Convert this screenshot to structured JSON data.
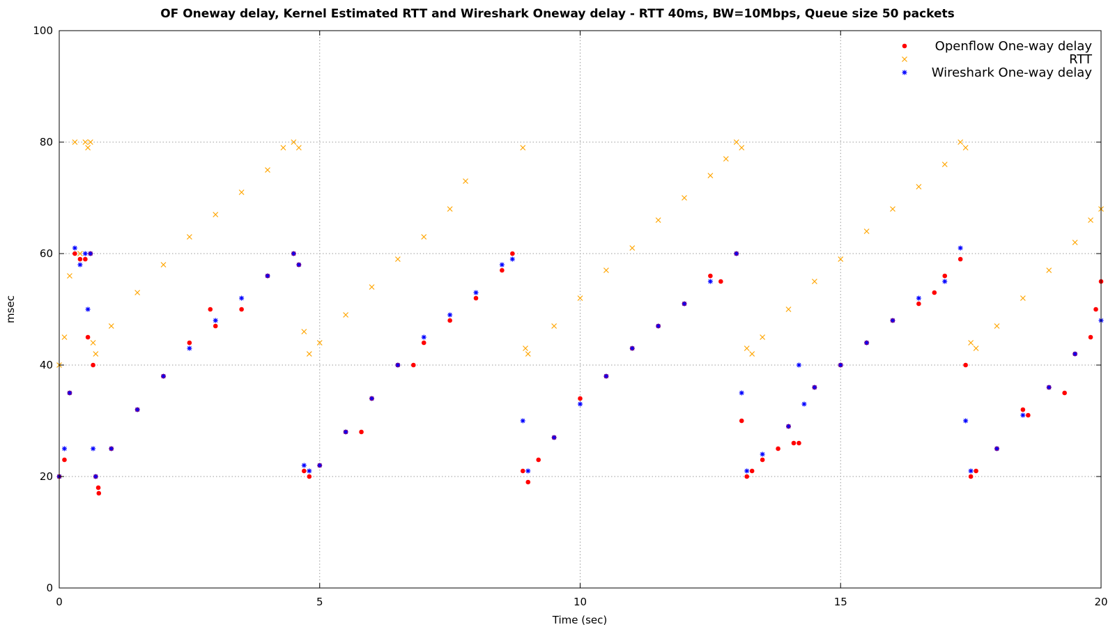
{
  "chart_data": {
    "type": "scatter",
    "title": "OF Oneway delay, Kernel Estimated RTT and Wireshark Oneway delay - RTT 40ms, BW=10Mbps, Queue size 50 packets",
    "xlabel": "Time (sec)",
    "ylabel": "msec",
    "xlim": [
      0,
      20
    ],
    "ylim": [
      0,
      100
    ],
    "x_ticks": [
      0,
      5,
      10,
      15,
      20
    ],
    "y_ticks": [
      0,
      20,
      40,
      60,
      80,
      100
    ],
    "x_tick_labels": [
      "0",
      "5",
      "10",
      "15",
      "20"
    ],
    "y_tick_labels": [
      "0",
      "20",
      "40",
      "60",
      "80",
      "100"
    ],
    "grid": true,
    "legend_position": "top-right",
    "series": [
      {
        "name": "Openflow One-way delay",
        "marker": "dot",
        "color": "#ff0000",
        "points": [
          [
            0.0,
            20
          ],
          [
            0.1,
            23
          ],
          [
            0.2,
            35
          ],
          [
            0.3,
            60
          ],
          [
            0.4,
            59
          ],
          [
            0.5,
            59
          ],
          [
            0.55,
            45
          ],
          [
            0.6,
            60
          ],
          [
            0.65,
            40
          ],
          [
            0.7,
            20
          ],
          [
            0.75,
            18
          ],
          [
            0.76,
            17
          ],
          [
            1.0,
            25
          ],
          [
            1.5,
            32
          ],
          [
            2.0,
            38
          ],
          [
            2.5,
            44
          ],
          [
            2.9,
            50
          ],
          [
            3.0,
            47
          ],
          [
            3.5,
            50
          ],
          [
            4.0,
            56
          ],
          [
            4.5,
            60
          ],
          [
            4.6,
            58
          ],
          [
            4.7,
            21
          ],
          [
            4.8,
            20
          ],
          [
            5.0,
            22
          ],
          [
            5.5,
            28
          ],
          [
            5.8,
            28
          ],
          [
            6.0,
            34
          ],
          [
            6.5,
            40
          ],
          [
            6.8,
            40
          ],
          [
            7.0,
            44
          ],
          [
            7.5,
            48
          ],
          [
            8.0,
            52
          ],
          [
            8.5,
            57
          ],
          [
            8.7,
            60
          ],
          [
            8.9,
            21
          ],
          [
            9.0,
            19
          ],
          [
            9.2,
            23
          ],
          [
            9.5,
            27
          ],
          [
            10.0,
            34
          ],
          [
            10.5,
            38
          ],
          [
            11.0,
            43
          ],
          [
            11.5,
            47
          ],
          [
            12.0,
            51
          ],
          [
            12.5,
            56
          ],
          [
            12.7,
            55
          ],
          [
            13.0,
            60
          ],
          [
            13.1,
            30
          ],
          [
            13.2,
            20
          ],
          [
            13.3,
            21
          ],
          [
            13.5,
            23
          ],
          [
            13.8,
            25
          ],
          [
            14.0,
            29
          ],
          [
            14.1,
            26
          ],
          [
            14.2,
            26
          ],
          [
            14.5,
            36
          ],
          [
            15.0,
            40
          ],
          [
            15.5,
            44
          ],
          [
            16.0,
            48
          ],
          [
            16.5,
            51
          ],
          [
            16.8,
            53
          ],
          [
            17.0,
            56
          ],
          [
            17.3,
            59
          ],
          [
            17.4,
            40
          ],
          [
            17.5,
            20
          ],
          [
            17.6,
            21
          ],
          [
            18.0,
            25
          ],
          [
            18.5,
            32
          ],
          [
            18.6,
            31
          ],
          [
            19.0,
            36
          ],
          [
            19.3,
            35
          ],
          [
            19.5,
            42
          ],
          [
            19.8,
            45
          ],
          [
            19.9,
            50
          ],
          [
            20.0,
            55
          ]
        ]
      },
      {
        "name": "RTT",
        "marker": "cross",
        "color": "#ffa500",
        "points": [
          [
            0.0,
            40
          ],
          [
            0.1,
            45
          ],
          [
            0.2,
            56
          ],
          [
            0.3,
            80
          ],
          [
            0.4,
            60
          ],
          [
            0.5,
            80
          ],
          [
            0.55,
            79
          ],
          [
            0.6,
            80
          ],
          [
            0.65,
            44
          ],
          [
            0.7,
            42
          ],
          [
            1.0,
            47
          ],
          [
            1.5,
            53
          ],
          [
            2.0,
            58
          ],
          [
            2.5,
            63
          ],
          [
            3.0,
            67
          ],
          [
            3.5,
            71
          ],
          [
            4.0,
            75
          ],
          [
            4.3,
            79
          ],
          [
            4.5,
            80
          ],
          [
            4.6,
            79
          ],
          [
            4.7,
            46
          ],
          [
            4.8,
            42
          ],
          [
            5.0,
            44
          ],
          [
            5.5,
            49
          ],
          [
            6.0,
            54
          ],
          [
            6.5,
            59
          ],
          [
            7.0,
            63
          ],
          [
            7.5,
            68
          ],
          [
            7.8,
            73
          ],
          [
            8.9,
            79
          ],
          [
            8.95,
            43
          ],
          [
            9.0,
            42
          ],
          [
            9.5,
            47
          ],
          [
            10.0,
            52
          ],
          [
            10.5,
            57
          ],
          [
            11.0,
            61
          ],
          [
            11.5,
            66
          ],
          [
            12.0,
            70
          ],
          [
            12.5,
            74
          ],
          [
            12.8,
            77
          ],
          [
            13.0,
            80
          ],
          [
            13.1,
            79
          ],
          [
            13.2,
            43
          ],
          [
            13.3,
            42
          ],
          [
            13.5,
            45
          ],
          [
            14.0,
            50
          ],
          [
            14.5,
            55
          ],
          [
            15.0,
            59
          ],
          [
            15.5,
            64
          ],
          [
            16.0,
            68
          ],
          [
            16.5,
            72
          ],
          [
            17.0,
            76
          ],
          [
            17.3,
            80
          ],
          [
            17.4,
            79
          ],
          [
            17.5,
            44
          ],
          [
            17.6,
            43
          ],
          [
            18.0,
            47
          ],
          [
            18.5,
            52
          ],
          [
            19.0,
            57
          ],
          [
            19.5,
            62
          ],
          [
            19.8,
            66
          ],
          [
            20.0,
            68
          ]
        ]
      },
      {
        "name": "Wireshark One-way delay",
        "marker": "star",
        "color": "#0000ff",
        "points": [
          [
            0.0,
            20
          ],
          [
            0.1,
            25
          ],
          [
            0.2,
            35
          ],
          [
            0.3,
            61
          ],
          [
            0.4,
            58
          ],
          [
            0.5,
            60
          ],
          [
            0.55,
            50
          ],
          [
            0.6,
            60
          ],
          [
            0.65,
            25
          ],
          [
            0.7,
            20
          ],
          [
            1.0,
            25
          ],
          [
            1.5,
            32
          ],
          [
            2.0,
            38
          ],
          [
            2.5,
            43
          ],
          [
            3.0,
            48
          ],
          [
            3.5,
            52
          ],
          [
            4.0,
            56
          ],
          [
            4.5,
            60
          ],
          [
            4.6,
            58
          ],
          [
            4.7,
            22
          ],
          [
            4.8,
            21
          ],
          [
            5.0,
            22
          ],
          [
            5.5,
            28
          ],
          [
            6.0,
            34
          ],
          [
            6.5,
            40
          ],
          [
            7.0,
            45
          ],
          [
            7.5,
            49
          ],
          [
            8.0,
            53
          ],
          [
            8.5,
            58
          ],
          [
            8.7,
            59
          ],
          [
            8.9,
            30
          ],
          [
            9.0,
            21
          ],
          [
            9.5,
            27
          ],
          [
            10.0,
            33
          ],
          [
            10.5,
            38
          ],
          [
            11.0,
            43
          ],
          [
            11.5,
            47
          ],
          [
            12.0,
            51
          ],
          [
            12.5,
            55
          ],
          [
            13.0,
            60
          ],
          [
            13.1,
            35
          ],
          [
            13.2,
            21
          ],
          [
            13.5,
            24
          ],
          [
            14.0,
            29
          ],
          [
            14.2,
            40
          ],
          [
            14.3,
            33
          ],
          [
            14.5,
            36
          ],
          [
            15.0,
            40
          ],
          [
            15.5,
            44
          ],
          [
            16.0,
            48
          ],
          [
            16.5,
            52
          ],
          [
            17.0,
            55
          ],
          [
            17.3,
            61
          ],
          [
            17.4,
            30
          ],
          [
            17.5,
            21
          ],
          [
            18.0,
            25
          ],
          [
            18.5,
            31
          ],
          [
            19.0,
            36
          ],
          [
            19.5,
            42
          ],
          [
            20.0,
            48
          ]
        ]
      }
    ]
  }
}
